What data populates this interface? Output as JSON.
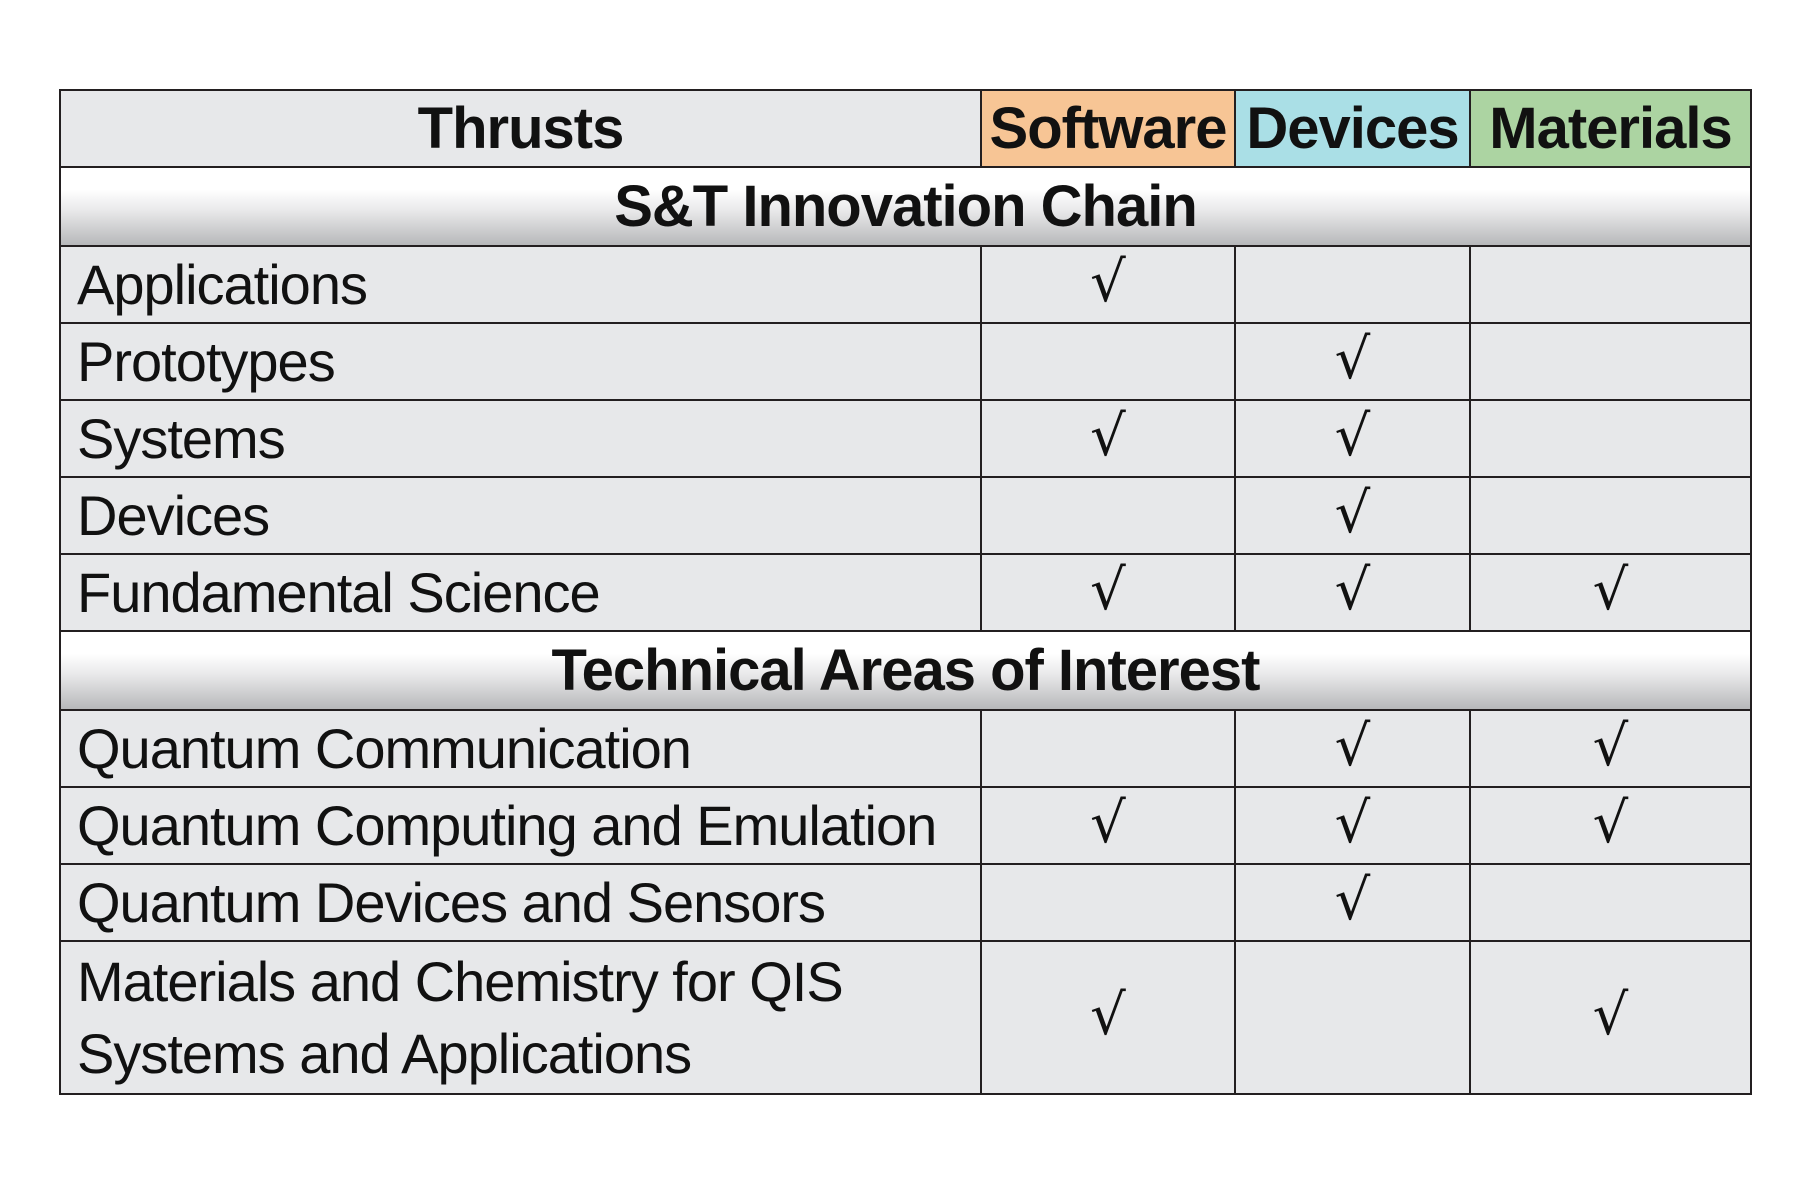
{
  "header": {
    "thrusts": "Thrusts",
    "software": "Software",
    "devices": "Devices",
    "materials": "Materials"
  },
  "colors": {
    "software": "#f7c595",
    "devices": "#aadfe6",
    "materials": "#acd4a2",
    "cell_background": "#e7e8ea"
  },
  "check_symbol": "√",
  "sections": [
    {
      "title": "S&T Innovation Chain",
      "rows": [
        {
          "label": "Applications",
          "software": true,
          "devices": false,
          "materials": false
        },
        {
          "label": "Prototypes",
          "software": false,
          "devices": true,
          "materials": false
        },
        {
          "label": "Systems",
          "software": true,
          "devices": true,
          "materials": false
        },
        {
          "label": "Devices",
          "software": false,
          "devices": true,
          "materials": false
        },
        {
          "label": "Fundamental Science",
          "software": true,
          "devices": true,
          "materials": true
        }
      ]
    },
    {
      "title": "Technical Areas of Interest",
      "rows": [
        {
          "label": "Quantum Communication",
          "software": false,
          "devices": true,
          "materials": true
        },
        {
          "label": "Quantum Computing and Emulation",
          "software": true,
          "devices": true,
          "materials": true
        },
        {
          "label": "Quantum Devices and Sensors",
          "software": false,
          "devices": true,
          "materials": false
        },
        {
          "label": "Materials and Chemistry for QIS Systems and Applications",
          "software": true,
          "devices": false,
          "materials": true
        }
      ]
    }
  ]
}
